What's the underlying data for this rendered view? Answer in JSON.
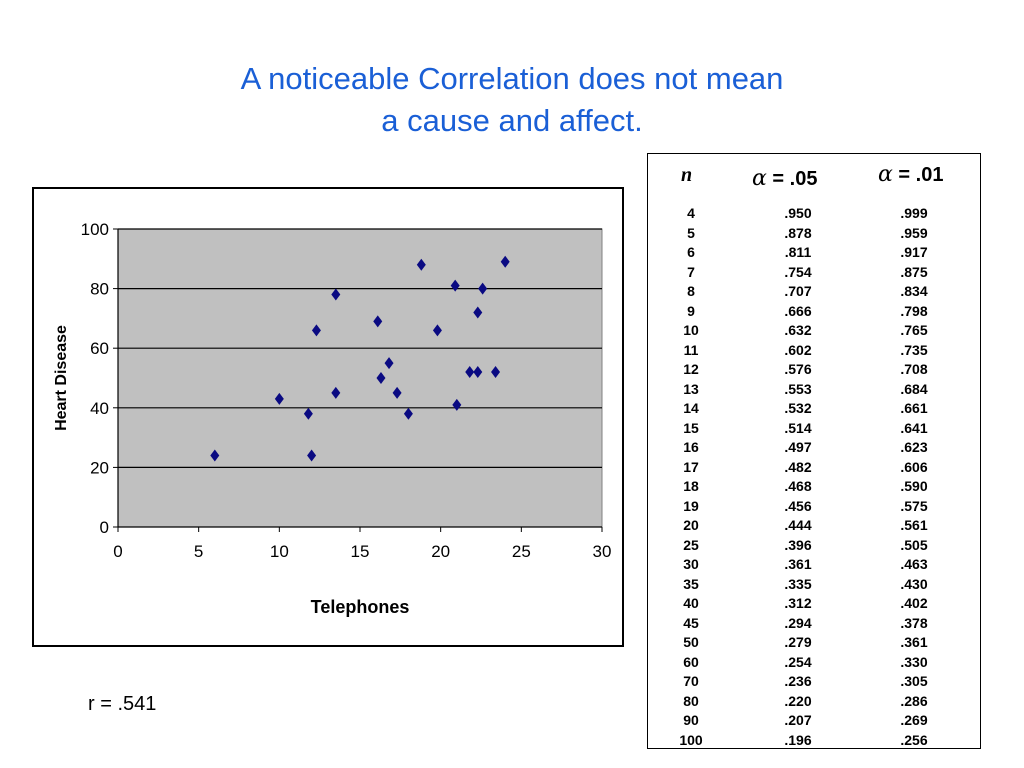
{
  "slide": {
    "title_line1": "A noticeable Correlation does not mean",
    "title_line2": "a cause and affect.",
    "r_text": "r = .541"
  },
  "colors": {
    "title": "#1a5fd6",
    "plot_bg": "#c0c0c0",
    "marker": "#0a0a82"
  },
  "chart_data": {
    "type": "scatter",
    "xlabel": "Telephones",
    "ylabel": "Heart Disease",
    "xlim": [
      0,
      30
    ],
    "ylim": [
      0,
      100
    ],
    "xticks": [
      0,
      5,
      10,
      15,
      20,
      25,
      30
    ],
    "yticks": [
      0,
      20,
      40,
      60,
      80,
      100
    ],
    "grid": "horizontal",
    "marker": "diamond",
    "points": [
      {
        "x": 6,
        "y": 24
      },
      {
        "x": 10,
        "y": 43
      },
      {
        "x": 11.8,
        "y": 38
      },
      {
        "x": 12,
        "y": 24
      },
      {
        "x": 12.3,
        "y": 66
      },
      {
        "x": 13.5,
        "y": 78
      },
      {
        "x": 13.5,
        "y": 45
      },
      {
        "x": 16.1,
        "y": 69
      },
      {
        "x": 16.3,
        "y": 50
      },
      {
        "x": 16.8,
        "y": 55
      },
      {
        "x": 17.3,
        "y": 45
      },
      {
        "x": 18,
        "y": 38
      },
      {
        "x": 18.8,
        "y": 88
      },
      {
        "x": 19.8,
        "y": 66
      },
      {
        "x": 20.9,
        "y": 81
      },
      {
        "x": 21,
        "y": 41
      },
      {
        "x": 21.8,
        "y": 52
      },
      {
        "x": 22.3,
        "y": 72
      },
      {
        "x": 22.3,
        "y": 52
      },
      {
        "x": 22.6,
        "y": 80
      },
      {
        "x": 23.4,
        "y": 52
      },
      {
        "x": 24,
        "y": 89
      }
    ]
  },
  "table": {
    "header_n": "n",
    "header_alpha_symbol": "α",
    "header_a05": " = .05",
    "header_a01": " = .01",
    "rows": [
      [
        "4",
        ".950",
        ".999"
      ],
      [
        "5",
        ".878",
        ".959"
      ],
      [
        "6",
        ".811",
        ".917"
      ],
      [
        "7",
        ".754",
        ".875"
      ],
      [
        "8",
        ".707",
        ".834"
      ],
      [
        "9",
        ".666",
        ".798"
      ],
      [
        "10",
        ".632",
        ".765"
      ],
      [
        "11",
        ".602",
        ".735"
      ],
      [
        "12",
        ".576",
        ".708"
      ],
      [
        "13",
        ".553",
        ".684"
      ],
      [
        "14",
        ".532",
        ".661"
      ],
      [
        "15",
        ".514",
        ".641"
      ],
      [
        "16",
        ".497",
        ".623"
      ],
      [
        "17",
        ".482",
        ".606"
      ],
      [
        "18",
        ".468",
        ".590"
      ],
      [
        "19",
        ".456",
        ".575"
      ],
      [
        "20",
        ".444",
        ".561"
      ],
      [
        "25",
        ".396",
        ".505"
      ],
      [
        "30",
        ".361",
        ".463"
      ],
      [
        "35",
        ".335",
        ".430"
      ],
      [
        "40",
        ".312",
        ".402"
      ],
      [
        "45",
        ".294",
        ".378"
      ],
      [
        "50",
        ".279",
        ".361"
      ],
      [
        "60",
        ".254",
        ".330"
      ],
      [
        "70",
        ".236",
        ".305"
      ],
      [
        "80",
        ".220",
        ".286"
      ],
      [
        "90",
        ".207",
        ".269"
      ],
      [
        "100",
        ".196",
        ".256"
      ]
    ]
  }
}
